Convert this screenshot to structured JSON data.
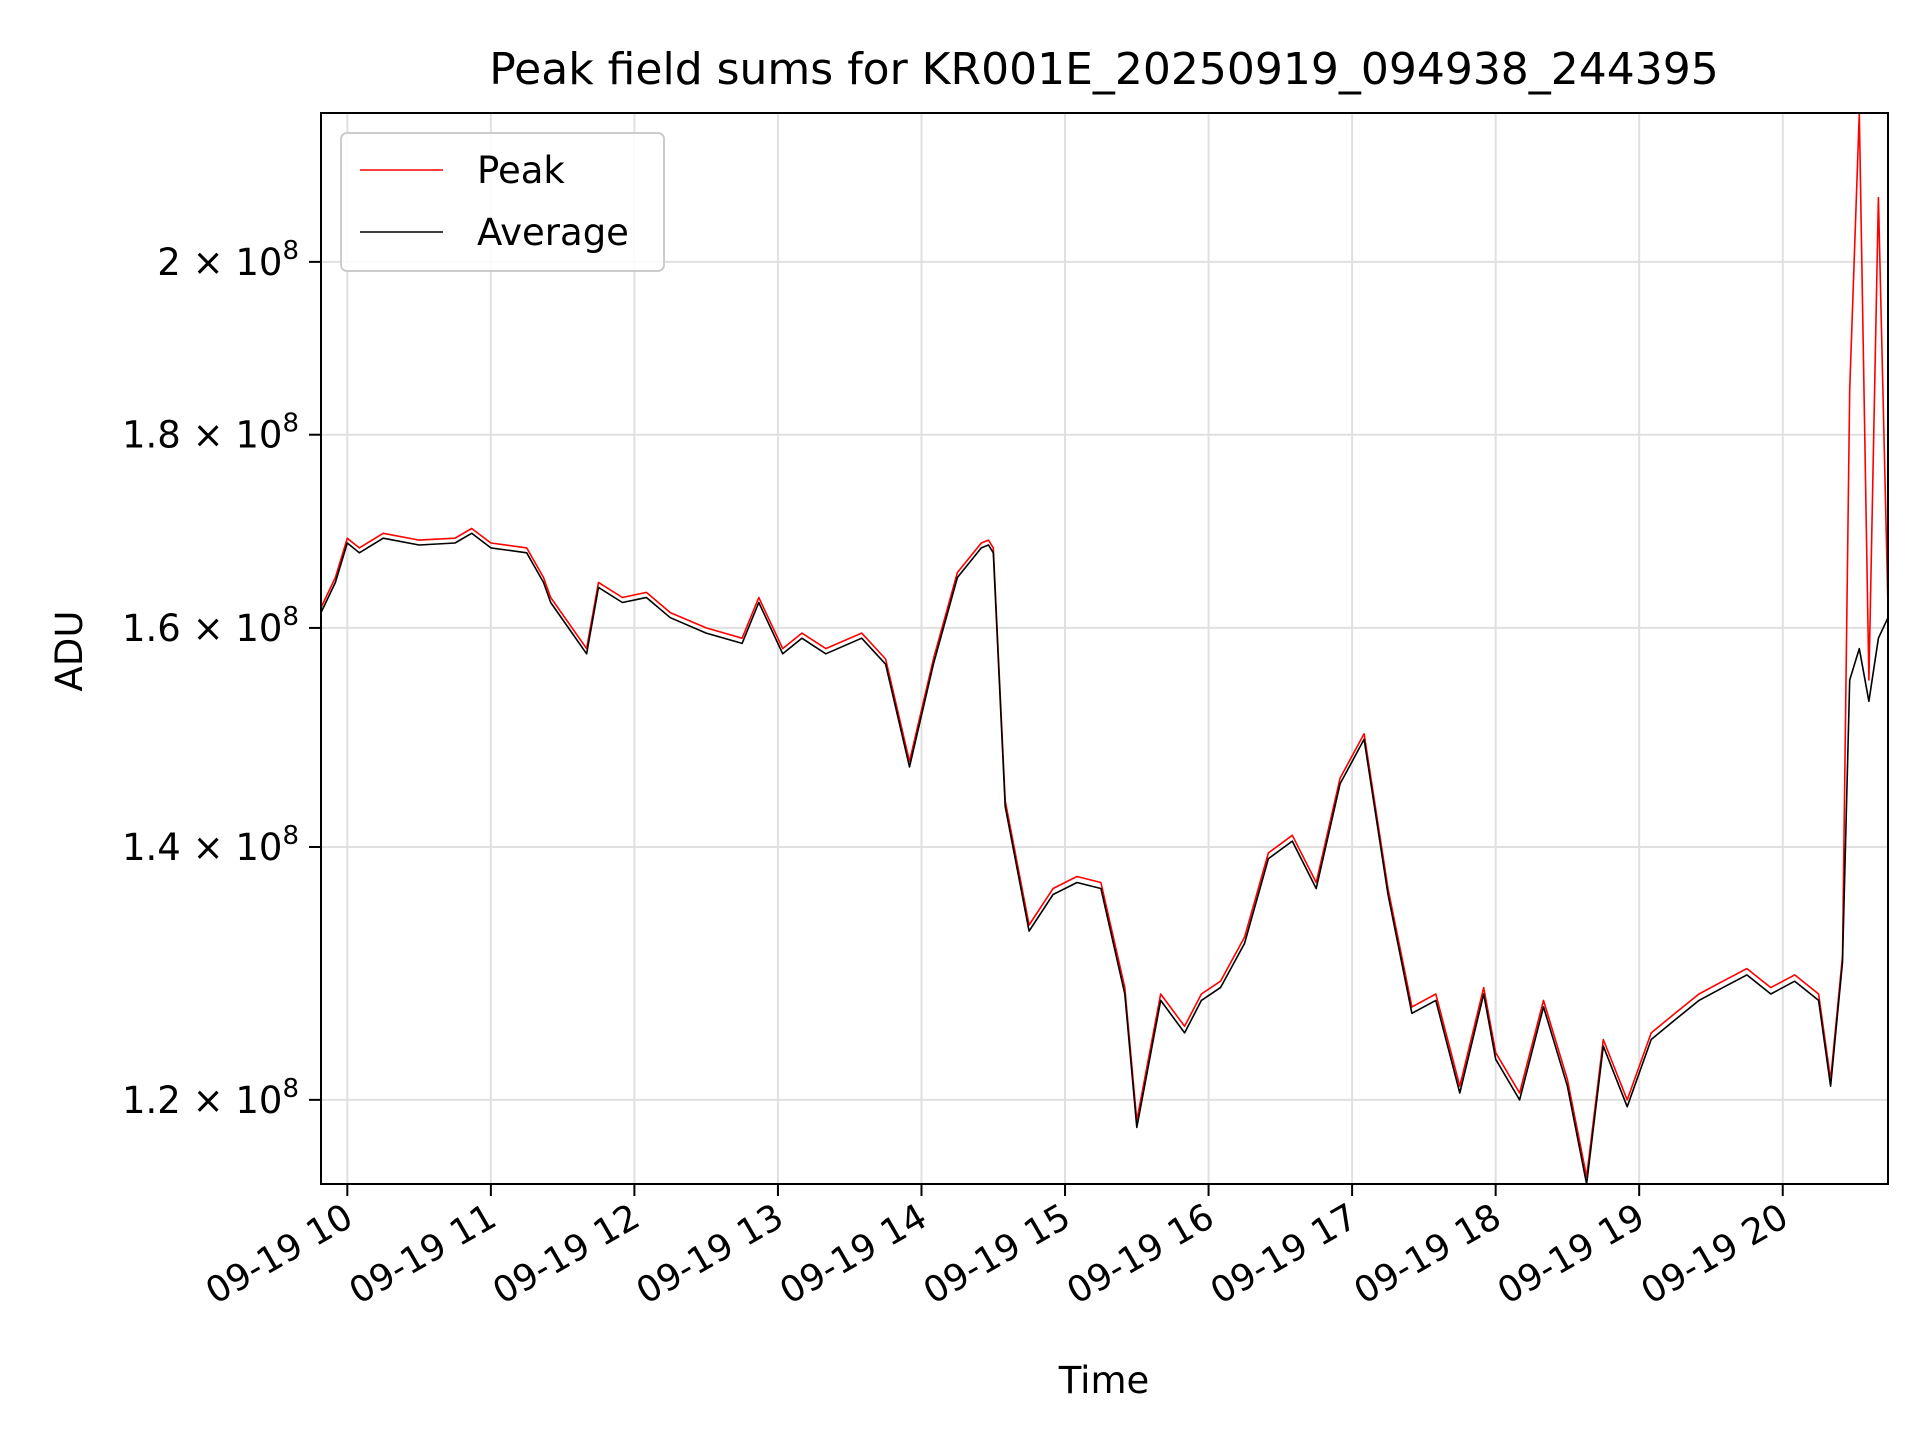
{
  "chart_data": {
    "type": "line",
    "title": "Peak field sums for KR001E_20250919_094938_244395",
    "xlabel": "Time",
    "ylabel": "ADU",
    "y_scale": "log",
    "xlim": [
      "2025-09-19 09:49",
      "2025-09-19 20:44"
    ],
    "ylim": [
      114000000,
      219000000
    ],
    "grid": true,
    "legend_position": "top-left",
    "x_ticks": [
      {
        "value": "2025-09-19 10:00",
        "label": "09-19 10"
      },
      {
        "value": "2025-09-19 11:00",
        "label": "09-19 11"
      },
      {
        "value": "2025-09-19 12:00",
        "label": "09-19 12"
      },
      {
        "value": "2025-09-19 13:00",
        "label": "09-19 13"
      },
      {
        "value": "2025-09-19 14:00",
        "label": "09-19 14"
      },
      {
        "value": "2025-09-19 15:00",
        "label": "09-19 15"
      },
      {
        "value": "2025-09-19 16:00",
        "label": "09-19 16"
      },
      {
        "value": "2025-09-19 17:00",
        "label": "09-19 17"
      },
      {
        "value": "2025-09-19 18:00",
        "label": "09-19 18"
      },
      {
        "value": "2025-09-19 19:00",
        "label": "09-19 19"
      },
      {
        "value": "2025-09-19 20:00",
        "label": "09-19 20"
      }
    ],
    "y_ticks": [
      {
        "value": 120000000,
        "mant": "1.2",
        "exp": "8"
      },
      {
        "value": 140000000,
        "mant": "1.4",
        "exp": "8"
      },
      {
        "value": 160000000,
        "mant": "1.6",
        "exp": "8"
      },
      {
        "value": 180000000,
        "mant": "1.8",
        "exp": "8"
      },
      {
        "value": 200000000,
        "mant": "2",
        "exp": "8"
      }
    ],
    "x": [
      "2025-09-19 09:49",
      "2025-09-19 09:55",
      "2025-09-19 10:00",
      "2025-09-19 10:05",
      "2025-09-19 10:15",
      "2025-09-19 10:30",
      "2025-09-19 10:45",
      "2025-09-19 10:52",
      "2025-09-19 11:00",
      "2025-09-19 11:15",
      "2025-09-19 11:22",
      "2025-09-19 11:25",
      "2025-09-19 11:40",
      "2025-09-19 11:45",
      "2025-09-19 11:55",
      "2025-09-19 12:05",
      "2025-09-19 12:15",
      "2025-09-19 12:30",
      "2025-09-19 12:45",
      "2025-09-19 12:52",
      "2025-09-19 13:02",
      "2025-09-19 13:10",
      "2025-09-19 13:20",
      "2025-09-19 13:35",
      "2025-09-19 13:45",
      "2025-09-19 13:55",
      "2025-09-19 14:05",
      "2025-09-19 14:15",
      "2025-09-19 14:25",
      "2025-09-19 14:28",
      "2025-09-19 14:30",
      "2025-09-19 14:35",
      "2025-09-19 14:45",
      "2025-09-19 14:55",
      "2025-09-19 15:05",
      "2025-09-19 15:15",
      "2025-09-19 15:25",
      "2025-09-19 15:30",
      "2025-09-19 15:40",
      "2025-09-19 15:50",
      "2025-09-19 15:57",
      "2025-09-19 16:05",
      "2025-09-19 16:15",
      "2025-09-19 16:25",
      "2025-09-19 16:35",
      "2025-09-19 16:45",
      "2025-09-19 16:55",
      "2025-09-19 17:05",
      "2025-09-19 17:15",
      "2025-09-19 17:25",
      "2025-09-19 17:35",
      "2025-09-19 17:45",
      "2025-09-19 17:55",
      "2025-09-19 18:00",
      "2025-09-19 18:10",
      "2025-09-19 18:20",
      "2025-09-19 18:30",
      "2025-09-19 18:38",
      "2025-09-19 18:45",
      "2025-09-19 18:55",
      "2025-09-19 19:05",
      "2025-09-19 19:15",
      "2025-09-19 19:25",
      "2025-09-19 19:35",
      "2025-09-19 19:45",
      "2025-09-19 19:55",
      "2025-09-19 20:05",
      "2025-09-19 20:15",
      "2025-09-19 20:20",
      "2025-09-19 20:25",
      "2025-09-19 20:28",
      "2025-09-19 20:32",
      "2025-09-19 20:36",
      "2025-09-19 20:40",
      "2025-09-19 20:44"
    ],
    "series": [
      {
        "name": "Peak",
        "color": "#ff0000",
        "values": [
          162000000,
          165000000,
          169000000,
          168000000,
          169500000,
          168800000,
          169000000,
          170000000,
          168500000,
          168000000,
          165000000,
          163000000,
          158000000,
          164500000,
          163000000,
          163500000,
          161500000,
          160000000,
          159000000,
          163000000,
          158000000,
          159500000,
          158000000,
          159500000,
          157000000,
          147500000,
          157000000,
          165500000,
          168500000,
          168800000,
          168000000,
          144000000,
          133500000,
          136500000,
          137500000,
          137000000,
          128500000,
          118500000,
          128000000,
          125500000,
          128000000,
          129000000,
          132500000,
          139500000,
          141000000,
          137000000,
          146000000,
          150000000,
          136500000,
          127000000,
          128000000,
          121000000,
          128500000,
          123500000,
          120500000,
          127500000,
          121500000,
          114500000,
          124500000,
          120000000,
          125000000,
          126500000,
          128000000,
          129000000,
          130000000,
          128500000,
          129500000,
          128000000,
          121500000,
          131000000,
          185000000,
          219000000,
          155000000,
          208000000,
          162000000
        ]
      },
      {
        "name": "Average",
        "color": "#000000",
        "values": [
          161500000,
          164500000,
          168500000,
          167500000,
          169000000,
          168300000,
          168500000,
          169500000,
          168000000,
          167500000,
          164500000,
          162500000,
          157500000,
          164000000,
          162500000,
          163000000,
          161000000,
          159500000,
          158500000,
          162500000,
          157500000,
          159000000,
          157500000,
          159000000,
          156500000,
          147000000,
          156500000,
          165000000,
          168000000,
          168300000,
          167500000,
          143500000,
          133000000,
          136000000,
          137000000,
          136500000,
          128000000,
          118000000,
          127500000,
          125000000,
          127500000,
          128500000,
          132000000,
          139000000,
          140500000,
          136500000,
          145500000,
          149500000,
          136000000,
          126500000,
          127500000,
          120500000,
          128000000,
          123000000,
          120000000,
          127000000,
          121000000,
          114000000,
          124000000,
          119500000,
          124500000,
          126000000,
          127500000,
          128500000,
          129500000,
          128000000,
          129000000,
          127500000,
          121000000,
          130500000,
          155000000,
          158000000,
          153000000,
          159000000,
          161000000
        ]
      }
    ]
  }
}
